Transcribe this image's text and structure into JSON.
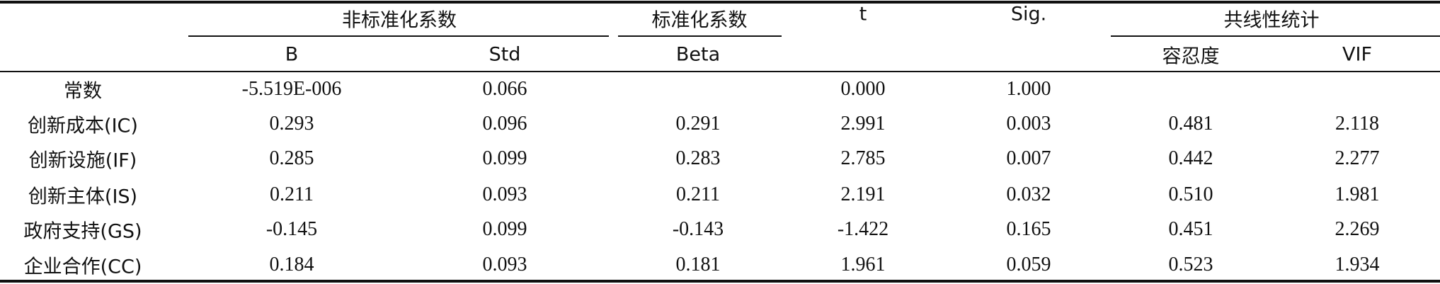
{
  "table": {
    "group_headers": [
      "非标准化系数",
      "标准化系数",
      "t",
      "Sig.",
      "共线性统计"
    ],
    "sub_headers": [
      "B",
      "Std",
      "Beta",
      "容忍度",
      "VIF"
    ],
    "rows": [
      [
        "常数",
        "-5.519E-006",
        "0.066",
        null,
        "0.000",
        "1.000",
        null,
        null
      ],
      [
        "创新成本(IC)",
        "0.293",
        "0.096",
        "0.291",
        "2.991",
        "0.003",
        "0.481",
        "2.118"
      ],
      [
        "创新设施(IF)",
        "0.285",
        "0.099",
        "0.283",
        "2.785",
        "0.007",
        "0.442",
        "2.277"
      ],
      [
        "创新主体(IS)",
        "0.211",
        "0.093",
        "0.211",
        "2.191",
        "0.032",
        "0.510",
        "1.981"
      ],
      [
        "政府支持(GS)",
        "-0.145",
        "0.099",
        "-0.143",
        "-1.422",
        "0.165",
        "0.451",
        "2.269"
      ],
      [
        "企业合作(CC)",
        "0.184",
        "0.093",
        "0.181",
        "1.961",
        "0.059",
        "0.523",
        "1.934"
      ]
    ]
  }
}
